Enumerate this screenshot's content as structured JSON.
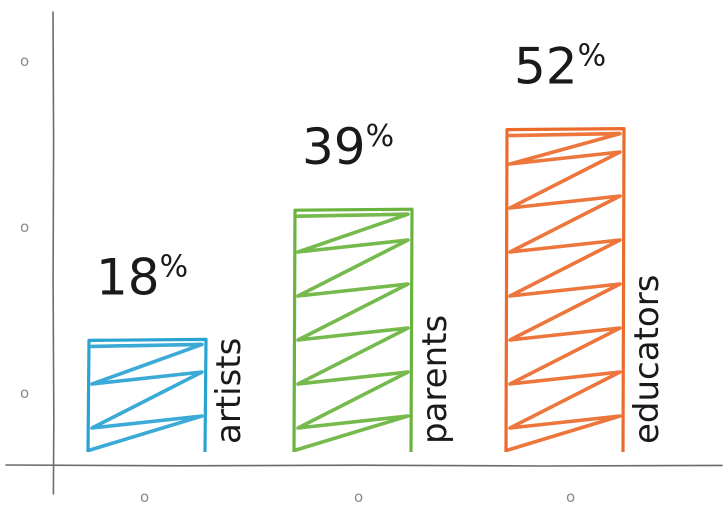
{
  "chart_data": {
    "type": "bar",
    "categories": [
      "artists",
      "parents",
      "educators"
    ],
    "values": [
      18,
      39,
      52
    ],
    "value_labels": [
      "18",
      "39",
      "52"
    ],
    "value_suffix": "%",
    "colors": [
      "#2aa3d3",
      "#6ab33e",
      "#ec6a2c"
    ],
    "y_ticks": [
      "o",
      "o",
      "o"
    ],
    "x_ticks": [
      "o",
      "o",
      "o"
    ],
    "title": "",
    "xlabel": "",
    "ylabel": "",
    "legend": "none",
    "grid": false,
    "style": "hand-drawn scribble"
  }
}
